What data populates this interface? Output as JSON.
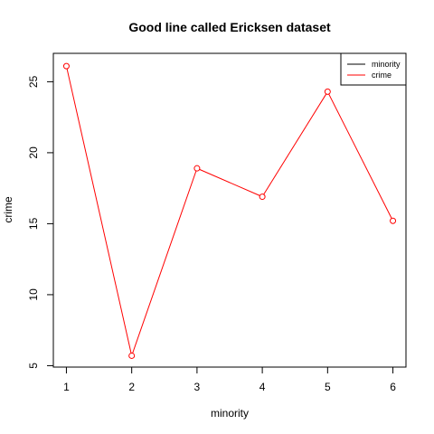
{
  "chart_data": {
    "type": "line",
    "title": "Good line called Ericksen dataset",
    "xlabel": "minority",
    "ylabel": "crime",
    "x": [
      1,
      2,
      3,
      4,
      5,
      6
    ],
    "x_ticks": [
      1,
      2,
      3,
      4,
      5,
      6
    ],
    "y_ticks": [
      5,
      10,
      15,
      20,
      25
    ],
    "xlim": [
      0.8,
      6.2
    ],
    "ylim": [
      4.9,
      27.0
    ],
    "grid": false,
    "legend_position": "top-right",
    "legend": [
      {
        "label": "minority",
        "color": "#000000"
      },
      {
        "label": "crime",
        "color": "#ff0000"
      }
    ],
    "series": [
      {
        "name": "crime",
        "color": "#ff0000",
        "marker": "open-circle",
        "values": [
          26.1,
          5.7,
          18.9,
          16.9,
          24.3,
          15.2
        ]
      }
    ]
  }
}
